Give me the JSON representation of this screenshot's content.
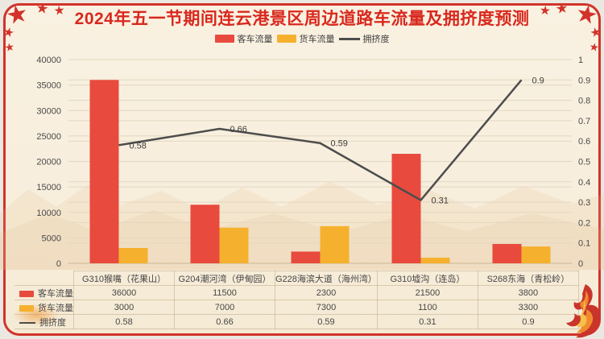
{
  "title": "2024年五一节期间连云港景区周边道路车流量及拥挤度预测",
  "icons": {
    "star": "★"
  },
  "colors": {
    "frame_red": "#d2332a",
    "title_red": "#d9281e",
    "bar_passenger": "#e84a3d",
    "bar_truck": "#f5b12d",
    "congestion_line": "#4d4d4d",
    "grid": "#e2d7c0",
    "axis_text": "#4a4a4a",
    "background": "#f7eedd"
  },
  "legend": [
    {
      "label": "客车流量",
      "swatch": "bar-red"
    },
    {
      "label": "货车流量",
      "swatch": "bar-yellow"
    },
    {
      "label": "拥挤度",
      "swatch": "line-dark"
    }
  ],
  "chart_data": {
    "type": "bar",
    "subtype": "grouped bars + line on secondary axis",
    "title": "2024年五一节期间连云港景区周边道路车流量及拥挤度预测",
    "categories": [
      "G310猴嘴（花果山）",
      "G204潮河湾（伊甸园）",
      "G228海滨大道（海州湾）",
      "G310墟沟（连岛）",
      "S268东海（青松岭）"
    ],
    "series": [
      {
        "name": "客车流量",
        "type": "bar",
        "axis": "left",
        "color": "#e84a3d",
        "values": [
          36000,
          11500,
          2300,
          21500,
          3800
        ]
      },
      {
        "name": "货车流量",
        "type": "bar",
        "axis": "left",
        "color": "#f5b12d",
        "values": [
          3000,
          7000,
          7300,
          1100,
          3300
        ]
      },
      {
        "name": "拥挤度",
        "type": "line",
        "axis": "right",
        "color": "#4d4d4d",
        "values": [
          0.58,
          0.66,
          0.59,
          0.31,
          0.9
        ],
        "point_labels": [
          "0.58",
          "0.66",
          "0.59",
          "0.31",
          "0.9"
        ]
      }
    ],
    "left_axis": {
      "min": 0,
      "max": 40000,
      "step": 5000,
      "ticks": [
        "40000",
        "35000",
        "30000",
        "25000",
        "20000",
        "15000",
        "10000",
        "5000",
        "0"
      ]
    },
    "right_axis": {
      "min": 0,
      "max": 1,
      "step": 0.1,
      "ticks": [
        "1",
        "0.9",
        "0.8",
        "0.7",
        "0.6",
        "0.5",
        "0.4",
        "0.3",
        "0.2",
        "0.1",
        "0"
      ]
    },
    "grid": true,
    "legend_position": "top"
  },
  "table": {
    "rows": [
      {
        "label": "客车流量",
        "swatch": "bar-red",
        "values": [
          "36000",
          "11500",
          "2300",
          "21500",
          "3800"
        ]
      },
      {
        "label": "货车流量",
        "swatch": "bar-yellow",
        "values": [
          "3000",
          "7000",
          "7300",
          "1100",
          "3300"
        ]
      },
      {
        "label": "拥挤度",
        "swatch": "line-dark",
        "values": [
          "0.58",
          "0.66",
          "0.59",
          "0.31",
          "0.9"
        ]
      }
    ]
  }
}
